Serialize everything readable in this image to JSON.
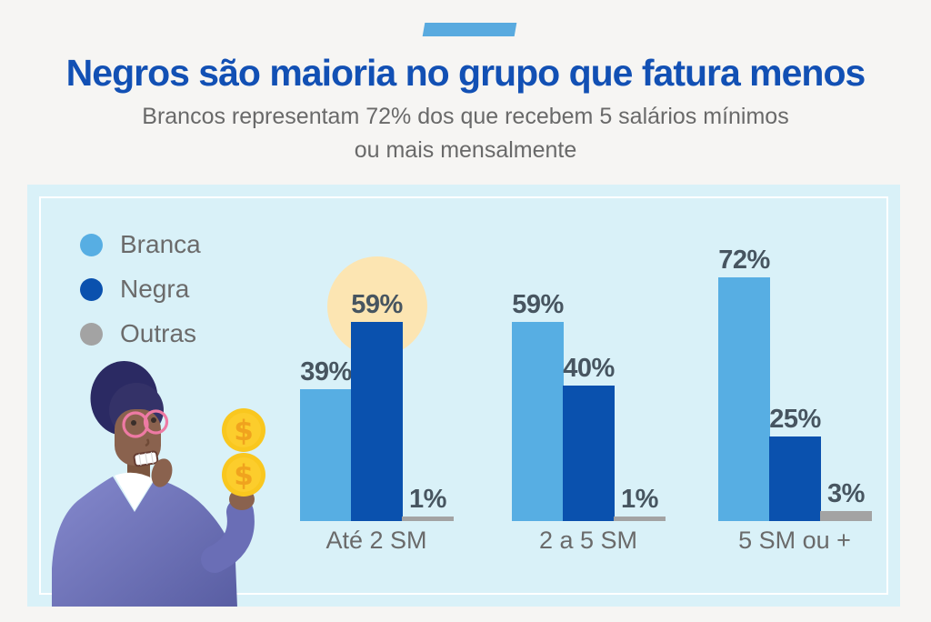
{
  "page": {
    "background": "#f6f5f3"
  },
  "header": {
    "accent_bar_color": "#59aadf",
    "title": "Negros são maioria no grupo que fatura menos",
    "title_color": "#1250b4",
    "subtitle_line1": "Brancos representam 72% dos que recebem 5 salários mínimos",
    "subtitle_line2": "ou mais mensalmente",
    "subtitle_color": "#696969"
  },
  "panel": {
    "background": "#d9f1f8",
    "inner_border_color": "#ffffff"
  },
  "legend": {
    "items": [
      {
        "label": "Branca",
        "color": "#57aee3"
      },
      {
        "label": "Negra",
        "color": "#0a51ae"
      },
      {
        "label": "Outras",
        "color": "#a3a3a3"
      }
    ]
  },
  "chart_data": {
    "type": "bar",
    "title": "Negros são maioria no grupo que fatura menos",
    "categories": [
      "Até 2 SM",
      "2 a 5 SM",
      "5 SM ou +"
    ],
    "series": [
      {
        "name": "Branca",
        "color": "#57aee3",
        "values": [
          39,
          59,
          72
        ]
      },
      {
        "name": "Negra",
        "color": "#0a51ae",
        "values": [
          59,
          40,
          25
        ]
      },
      {
        "name": "Outras",
        "color": "#a3a3a3",
        "values": [
          1,
          1,
          3
        ]
      }
    ],
    "value_suffix": "%",
    "xlabel": "",
    "ylabel": "",
    "ylim": [
      0,
      100
    ],
    "grid": false,
    "legend_position": "top-left",
    "value_label_color": "#475560",
    "category_label_color": "#6a6a6a",
    "highlight": {
      "group": "Até 2 SM",
      "series": "Negra",
      "style": "circle",
      "color": "#fce5b2"
    }
  },
  "illustration": {
    "name": "worried-person-holding-coins",
    "colors": {
      "hair": "#2b2a63",
      "skin": "#8a624e",
      "glasses": "#ee7aa4",
      "sweater_light": "#8589cd",
      "sweater_dark": "#555a9f",
      "coin": "#f9c71f",
      "coin_symbol": "#f0a31e"
    },
    "coin_symbol_text": "$"
  }
}
